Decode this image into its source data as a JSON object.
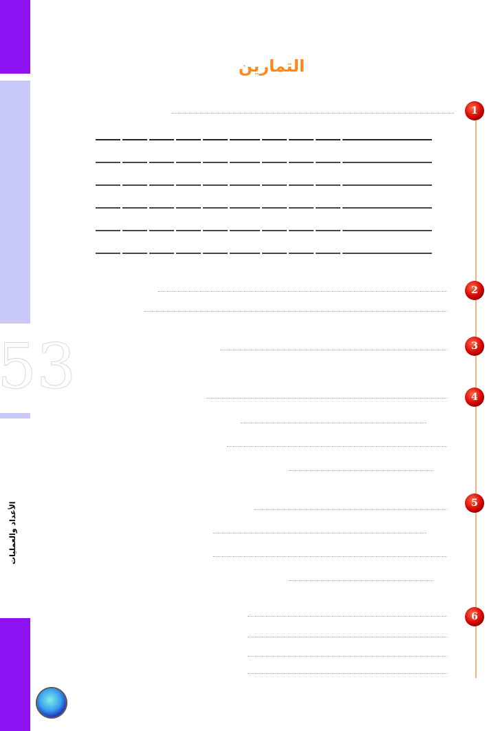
{
  "page": {
    "title": "التمارين",
    "page_number": "53",
    "chapter_label": "الأعداد والعمليات"
  },
  "colors": {
    "sidebar": "#8d12f2",
    "sidebar_light": "#c9c9f7",
    "title": "#ff8a1a",
    "marker": "#d40000",
    "timeline": "#f7b27a"
  },
  "exercises": [
    {
      "number": "1"
    },
    {
      "number": "2"
    },
    {
      "number": "3"
    },
    {
      "number": "4"
    },
    {
      "number": "5"
    },
    {
      "number": "6"
    }
  ]
}
